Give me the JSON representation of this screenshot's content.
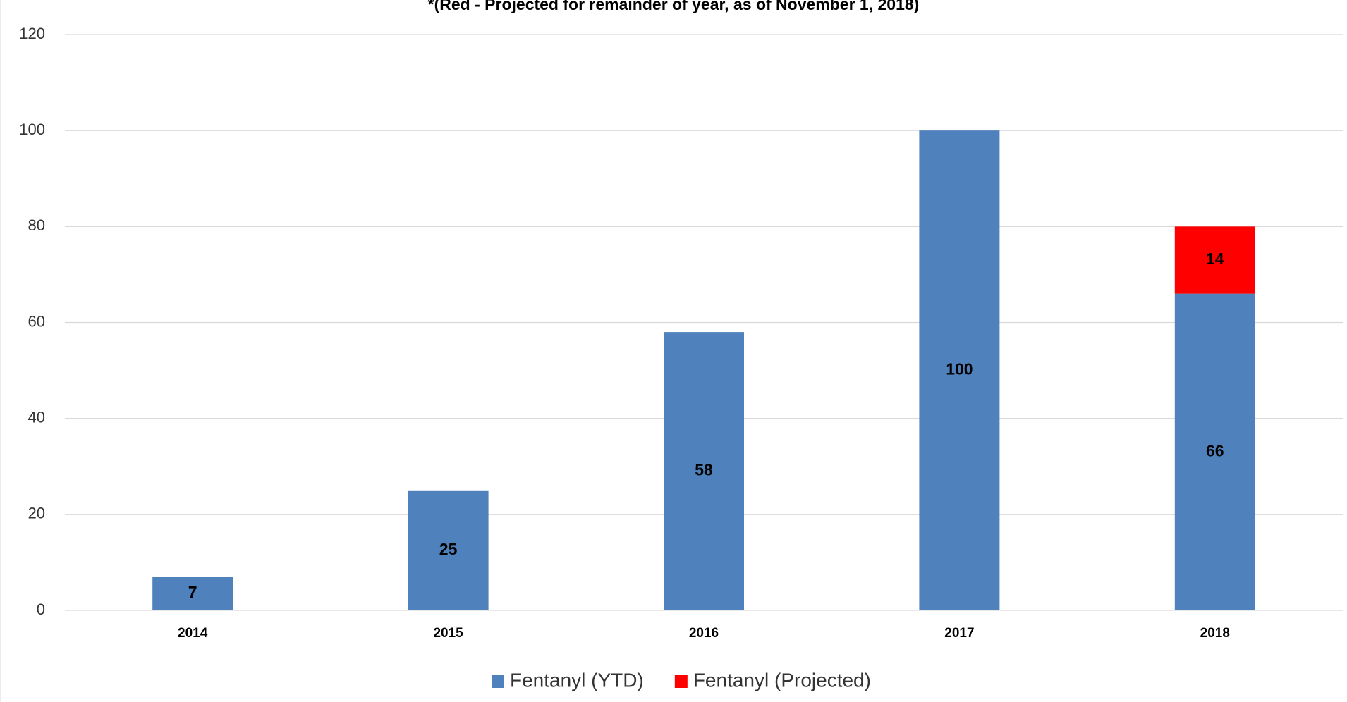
{
  "chart_data": {
    "type": "stacked_bar",
    "title": "*(Red - Projected for remainder of year, as of November 1, 2018)",
    "categories": [
      "2014",
      "2015",
      "2016",
      "2017",
      "2018"
    ],
    "series": [
      {
        "name": "Fentanyl (YTD)",
        "color": "#4f81bd",
        "values": [
          7,
          25,
          58,
          100,
          66
        ]
      },
      {
        "name": "Fentanyl (Projected)",
        "color": "#ff0000",
        "values": [
          null,
          null,
          null,
          null,
          14
        ]
      }
    ],
    "ylim": [
      0,
      120
    ],
    "yticks": [
      0,
      20,
      40,
      60,
      80,
      100,
      120
    ],
    "grid": true,
    "legend": "bottom"
  }
}
